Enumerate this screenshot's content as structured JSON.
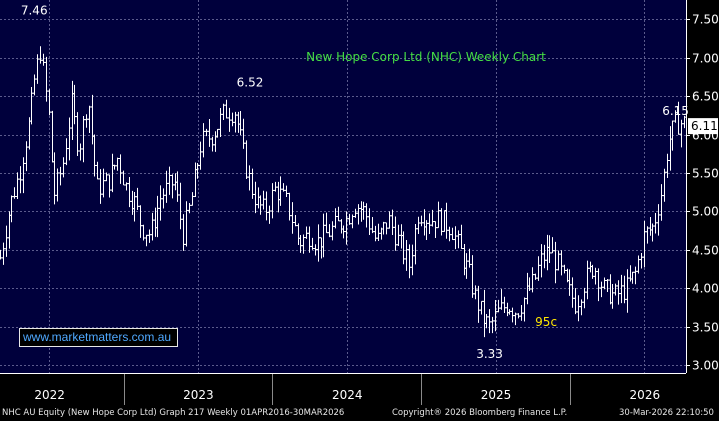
{
  "chart_data": {
    "type": "ohlc",
    "title": "New Hope Corp Ltd (NHC) Weekly Chart",
    "xlabel": "",
    "ylabel": "",
    "ylim": [
      2.9,
      7.75
    ],
    "y_ticks": [
      "3.00",
      "3.50",
      "4.00",
      "4.50",
      "5.00",
      "5.50",
      "6.00",
      "6.50",
      "7.00",
      "7.50"
    ],
    "x_ticks": [
      "2022",
      "2023",
      "2024",
      "2025",
      "2026"
    ],
    "x_range": [
      2021.67,
      2026.28
    ],
    "last_price_label": "6.11",
    "grid": true,
    "colors": {
      "background": "#00003c",
      "grid": "#5b5b8c",
      "bars": "#ffffff",
      "title": "#44dd44",
      "annotation_yellow": "#ffe600"
    },
    "annotations": [
      {
        "text": "7.46",
        "x": 2021.9,
        "y": 7.46,
        "color": "#ffffff"
      },
      {
        "text": "6.52",
        "x": 2023.35,
        "y": 6.52,
        "color": "#ffffff"
      },
      {
        "text": "3.33",
        "x": 2024.96,
        "y": 3.33,
        "color": "#ffffff"
      },
      {
        "text": "95c",
        "x": 2025.34,
        "y": 3.8,
        "color": "#ffe600"
      },
      {
        "text": "6.15",
        "x": 2026.21,
        "y": 6.15,
        "color": "#ffffff"
      }
    ],
    "series_anchors": {
      "x": [
        2021.67,
        2021.74,
        2021.8,
        2021.87,
        2021.9,
        2021.94,
        2022.0,
        2022.03,
        2022.09,
        2022.15,
        2022.2,
        2022.26,
        2022.32,
        2022.4,
        2022.46,
        2022.52,
        2022.58,
        2022.62,
        2022.68,
        2022.75,
        2022.84,
        2022.9,
        2022.96,
        2023.02,
        2023.1,
        2023.18,
        2023.25,
        2023.32,
        2023.36,
        2023.4,
        2023.45,
        2023.52,
        2023.6,
        2023.68,
        2023.75,
        2023.8,
        2023.86,
        2023.92,
        2024.0,
        2024.05,
        2024.12,
        2024.2,
        2024.28,
        2024.35,
        2024.42,
        2024.48,
        2024.55,
        2024.62,
        2024.7,
        2024.76,
        2024.82,
        2024.86,
        2024.92,
        2024.96,
        2025.02,
        2025.08,
        2025.14,
        2025.2,
        2025.26,
        2025.3,
        2025.36,
        2025.42,
        2025.48,
        2025.54,
        2025.6,
        2025.66,
        2025.72,
        2025.8,
        2025.88,
        2025.94,
        2026.0,
        2026.06,
        2026.12,
        2026.16,
        2026.21
      ],
      "close": [
        4.4,
        5.1,
        5.5,
        6.2,
        6.7,
        7.1,
        6.2,
        5.2,
        5.6,
        6.4,
        5.8,
        6.5,
        5.3,
        5.4,
        5.7,
        5.3,
        5.1,
        4.8,
        4.7,
        5.2,
        5.4,
        4.7,
        5.2,
        5.9,
        6.0,
        6.3,
        6.3,
        5.6,
        5.3,
        5.1,
        5.0,
        5.3,
        5.1,
        4.6,
        4.7,
        4.6,
        4.7,
        4.8,
        4.9,
        5.1,
        5.0,
        4.6,
        4.9,
        4.6,
        4.3,
        5.0,
        4.9,
        4.9,
        4.8,
        4.5,
        4.2,
        3.9,
        3.6,
        3.5,
        3.7,
        3.8,
        3.7,
        3.9,
        4.1,
        4.35,
        4.5,
        4.3,
        4.0,
        3.8,
        4.1,
        4.3,
        4.0,
        3.9,
        4.0,
        4.2,
        4.7,
        4.8,
        5.3,
        5.9,
        6.15
      ]
    }
  },
  "footer": {
    "left": "NHC AU Equity (New Hope Corp Ltd) Graph 217 Weekly 01APR2016-30MAR2026",
    "middle": "Copyright® 2026 Bloomberg Finance L.P.",
    "right": "30-Mar-2026 22:10:50"
  },
  "watermark": "www.marketmatters.com.au"
}
